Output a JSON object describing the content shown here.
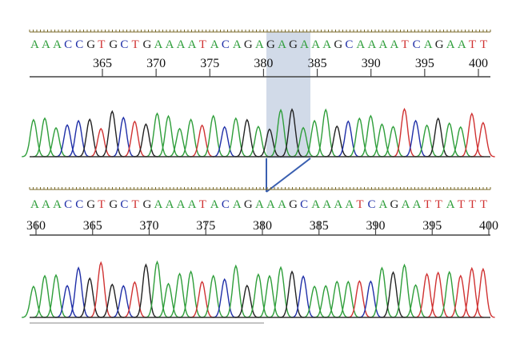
{
  "base_colors": {
    "A": "#2e9e3a",
    "C": "#1f2fa8",
    "G": "#222222",
    "T": "#d03232"
  },
  "highlight_color": "#c9d3e4",
  "connector_color": "#3a5fb0",
  "panels": [
    {
      "id": "top",
      "sequence": "AAACCGTGCTGAAAATACAGAGAGAAAGCAAAATCAGAATT",
      "numbers": [
        "365",
        "370",
        "375",
        "380",
        "385",
        "390",
        "395",
        "400"
      ]
    },
    {
      "id": "bottom",
      "sequence": "AAACCGTGCTGAAAATACAGAAAGCAAAATCAGAATTATTT",
      "numbers": [
        "360",
        "365",
        "370",
        "375",
        "380",
        "385",
        "390",
        "395",
        "400"
      ]
    }
  ]
}
